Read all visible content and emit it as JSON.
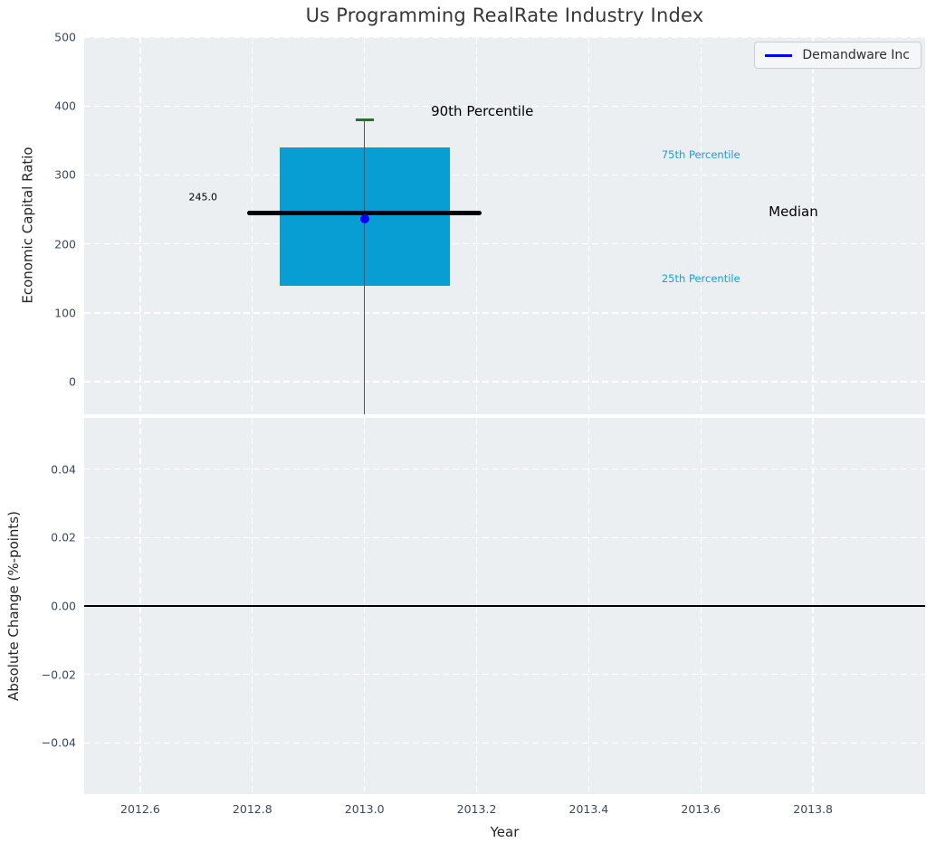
{
  "figure": {
    "title": "Us Programming RealRate Industry Index",
    "background": "#ffffff",
    "axes_background": "#eceff1",
    "grid_color": "#ffffff",
    "tick_label_color": "#3b4a5a"
  },
  "legend": {
    "label": "Demandware Inc",
    "line_color": "#0000ff"
  },
  "chart_data": [
    {
      "type": "box",
      "title": "Us Programming RealRate Industry Index",
      "ylabel": "Economic Capital Ratio",
      "xlim": [
        2012.5,
        2014.0
      ],
      "ylim": [
        -47,
        500
      ],
      "grid": "white dashed",
      "legend_position": "upper right",
      "xtick_values": [
        2012.6,
        2012.8,
        2013.0,
        2013.2,
        2013.4,
        2013.6,
        2013.8
      ],
      "ytick_values": [
        0,
        100,
        200,
        300,
        400,
        500
      ],
      "ytick_labels": [
        "0",
        "100",
        "200",
        "300",
        "400",
        "500"
      ],
      "industry_box": {
        "x": 2013.0,
        "box_halfwidth": 0.152,
        "percentile_25": 139,
        "median": 245.0,
        "percentile_75": 340,
        "percentile_90": 380,
        "whisker_low_clipped_below_axis": true,
        "median_annotation": "245.0",
        "median_line_halfwidth": 0.205,
        "cap_halfwidth": 0.016,
        "box_color": "#089dd3",
        "median_color": "#000000",
        "whisker_color": "#555555",
        "cap_color": "#118111"
      },
      "company_point": {
        "name": "Demandware Inc",
        "x": 2013.0,
        "value": 236,
        "color": "#0000ff"
      },
      "annotations": [
        {
          "text": "90th Percentile",
          "x": 2013.21,
          "y": 392,
          "color": "#000000",
          "size": 15
        },
        {
          "text": "75th Percentile",
          "x": 2013.6,
          "y": 330,
          "color": "#1b9ed8",
          "size": 11.5
        },
        {
          "text": "Median",
          "x": 2013.765,
          "y": 247,
          "color": "#000000",
          "size": 15
        },
        {
          "text": "25th Percentile",
          "x": 2013.6,
          "y": 150,
          "color": "#1b9ed8",
          "size": 11.5
        },
        {
          "text": "245.0",
          "x": 2012.712,
          "y": 268,
          "color": "#000000",
          "size": 11
        }
      ]
    },
    {
      "type": "line",
      "xlabel": "Year",
      "ylabel": "Absolute Change (%-points)",
      "xlim": [
        2012.5,
        2014.0
      ],
      "ylim": [
        -0.055,
        0.055
      ],
      "grid": "white dashed",
      "xtick_values": [
        2012.6,
        2012.8,
        2013.0,
        2013.2,
        2013.4,
        2013.6,
        2013.8
      ],
      "xtick_labels": [
        "2012.6",
        "2012.8",
        "2013.0",
        "2013.2",
        "2013.4",
        "2013.6",
        "2013.8"
      ],
      "ytick_values": [
        0.04,
        0.02,
        0.0,
        -0.02,
        -0.04
      ],
      "ytick_labels": [
        "0.04",
        "0.02",
        "0.00",
        "−0.02",
        "−0.04"
      ],
      "series": [],
      "zero_line": {
        "value": 0.0,
        "color": "#000000"
      }
    }
  ]
}
